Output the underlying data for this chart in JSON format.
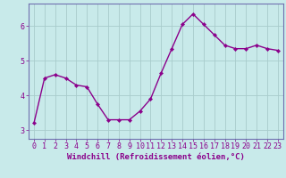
{
  "x": [
    0,
    1,
    2,
    3,
    4,
    5,
    6,
    7,
    8,
    9,
    10,
    11,
    12,
    13,
    14,
    15,
    16,
    17,
    18,
    19,
    20,
    21,
    22,
    23
  ],
  "y": [
    3.2,
    4.5,
    4.6,
    4.5,
    4.3,
    4.25,
    3.75,
    3.3,
    3.3,
    3.3,
    3.55,
    3.9,
    4.65,
    5.35,
    6.05,
    6.35,
    6.05,
    5.75,
    5.45,
    5.35,
    5.35,
    5.45,
    5.35,
    5.3
  ],
  "line_color": "#8B008B",
  "marker": "D",
  "marker_size": 2.2,
  "bg_color": "#c8eaea",
  "grid_color": "#a8cccc",
  "xlabel": "Windchill (Refroidissement éolien,°C)",
  "ylabel": "",
  "xlim": [
    -0.5,
    23.5
  ],
  "ylim": [
    2.75,
    6.65
  ],
  "yticks": [
    3,
    4,
    5,
    6
  ],
  "xticks": [
    0,
    1,
    2,
    3,
    4,
    5,
    6,
    7,
    8,
    9,
    10,
    11,
    12,
    13,
    14,
    15,
    16,
    17,
    18,
    19,
    20,
    21,
    22,
    23
  ],
  "xlabel_fontsize": 6.5,
  "tick_fontsize": 6.0,
  "line_width": 1.0,
  "spine_color": "#7070b0"
}
